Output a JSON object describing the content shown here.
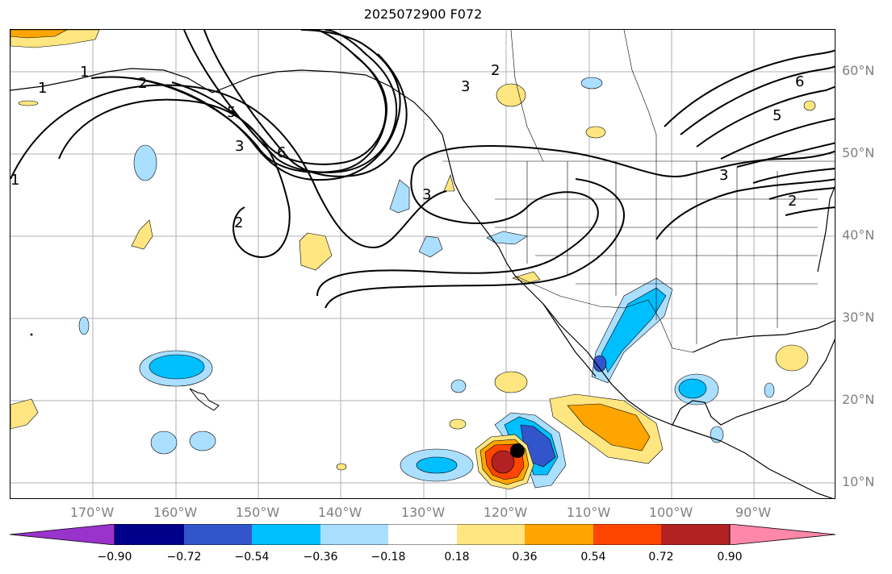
{
  "title": "2025072900 F072",
  "lat_labels": [
    "60°N",
    "50°N",
    "40°N",
    "30°N",
    "20°N",
    "10°N"
  ],
  "lon_labels": [
    "170°W",
    "160°W",
    "150°W",
    "140°W",
    "130°W",
    "120°W",
    "110°W",
    "100°W",
    "90°W"
  ],
  "contour_labels": [
    "1",
    "1",
    "1",
    "2",
    "2",
    "2",
    "2",
    "3",
    "3",
    "3",
    "3",
    "5",
    "5",
    "6",
    "6"
  ],
  "colorbar": {
    "ticks": [
      "−0.90",
      "−0.72",
      "−0.54",
      "−0.36",
      "−0.18",
      "0.18",
      "0.36",
      "0.54",
      "0.72",
      "0.90"
    ],
    "colors": [
      "#9933cc",
      "#00008b",
      "#3355cc",
      "#00bfff",
      "#aadfff",
      "#ffffff",
      "#ffe680",
      "#ffa500",
      "#ff4500",
      "#b22222",
      "#ff88aa"
    ]
  },
  "marker": "storm-center"
}
